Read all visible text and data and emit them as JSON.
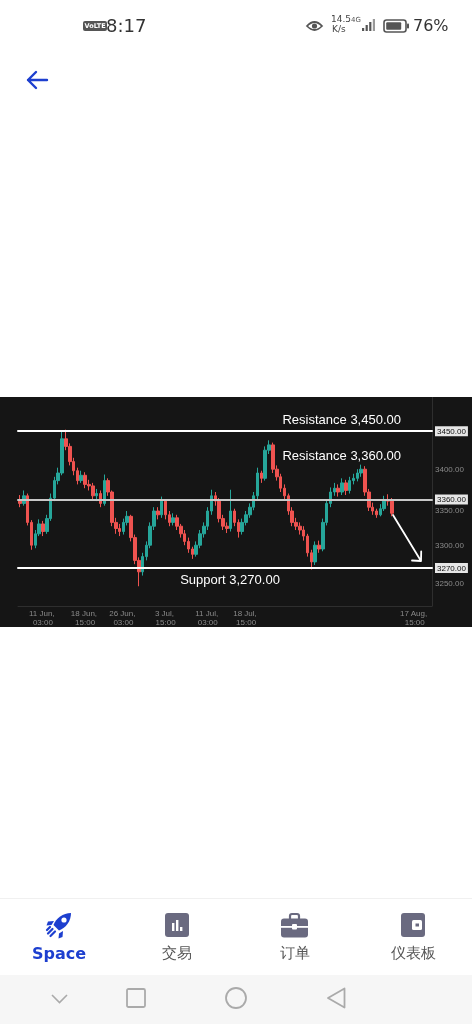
{
  "chart_data": {
    "type": "candlestick",
    "categories": [
      null,
      null,
      null,
      null,
      null,
      null,
      "11 Jun, 03:00",
      null,
      null,
      null,
      null,
      null,
      null,
      null,
      null,
      null,
      null,
      "18 Jun, 15:00",
      null,
      null,
      null,
      null,
      null,
      null,
      null,
      null,
      null,
      "26 Jun, 03:00",
      null,
      null,
      null,
      null,
      null,
      null,
      null,
      null,
      null,
      null,
      "3 Jul, 15:00",
      null,
      null,
      null,
      null,
      null,
      null,
      null,
      null,
      null,
      null,
      "11 Jul, 03:00",
      null,
      null,
      null,
      null,
      null,
      null,
      null,
      null,
      null,
      "18 Jul, 15:00",
      null,
      null,
      null,
      null,
      null,
      null,
      null,
      null,
      null,
      null,
      null,
      null,
      null,
      null,
      null,
      null,
      null,
      null,
      null,
      null,
      null,
      null,
      null,
      null,
      null,
      null,
      null,
      null,
      null,
      null,
      null,
      null,
      null,
      null,
      null,
      null,
      null,
      null,
      null,
      null,
      null,
      null,
      null,
      "17 Aug, 15:00",
      null,
      null,
      null,
      null
    ],
    "ohlc": [
      [
        3360,
        3366,
        3350,
        3355
      ],
      [
        3355,
        3372,
        3352,
        3365
      ],
      [
        3365,
        3368,
        3326,
        3330
      ],
      [
        3330,
        3333,
        3294,
        3300
      ],
      [
        3300,
        3320,
        3296,
        3315
      ],
      [
        3315,
        3334,
        3312,
        3328
      ],
      [
        3328,
        3332,
        3312,
        3318
      ],
      [
        3318,
        3340,
        3315,
        3335
      ],
      [
        3335,
        3368,
        3332,
        3362
      ],
      [
        3362,
        3390,
        3358,
        3385
      ],
      [
        3385,
        3402,
        3380,
        3395
      ],
      [
        3395,
        3451,
        3392,
        3440
      ],
      [
        3440,
        3452,
        3425,
        3430
      ],
      [
        3430,
        3434,
        3405,
        3410
      ],
      [
        3410,
        3415,
        3392,
        3398
      ],
      [
        3398,
        3402,
        3380,
        3385
      ],
      [
        3385,
        3398,
        3382,
        3392
      ],
      [
        3392,
        3396,
        3375,
        3380
      ],
      [
        3380,
        3386,
        3372,
        3378
      ],
      [
        3378,
        3382,
        3360,
        3365
      ],
      [
        3365,
        3374,
        3358,
        3368
      ],
      [
        3368,
        3372,
        3350,
        3355
      ],
      [
        3355,
        3393,
        3352,
        3385
      ],
      [
        3385,
        3388,
        3365,
        3370
      ],
      [
        3370,
        3372,
        3325,
        3330
      ],
      [
        3330,
        3336,
        3315,
        3322
      ],
      [
        3322,
        3328,
        3312,
        3318
      ],
      [
        3318,
        3335,
        3314,
        3330
      ],
      [
        3330,
        3345,
        3326,
        3338
      ],
      [
        3338,
        3340,
        3305,
        3310
      ],
      [
        3310,
        3314,
        3275,
        3280
      ],
      [
        3280,
        3284,
        3246,
        3265
      ],
      [
        3265,
        3290,
        3260,
        3285
      ],
      [
        3285,
        3305,
        3280,
        3300
      ],
      [
        3300,
        3330,
        3296,
        3325
      ],
      [
        3325,
        3350,
        3320,
        3345
      ],
      [
        3345,
        3350,
        3334,
        3340
      ],
      [
        3340,
        3364,
        3336,
        3358
      ],
      [
        3358,
        3360,
        3334,
        3340
      ],
      [
        3340,
        3345,
        3325,
        3330
      ],
      [
        3330,
        3342,
        3326,
        3336
      ],
      [
        3336,
        3340,
        3320,
        3325
      ],
      [
        3325,
        3328,
        3310,
        3315
      ],
      [
        3315,
        3320,
        3300,
        3305
      ],
      [
        3305,
        3310,
        3290,
        3295
      ],
      [
        3295,
        3298,
        3282,
        3288
      ],
      [
        3288,
        3305,
        3285,
        3300
      ],
      [
        3300,
        3320,
        3296,
        3315
      ],
      [
        3315,
        3330,
        3310,
        3325
      ],
      [
        3325,
        3350,
        3320,
        3345
      ],
      [
        3345,
        3373,
        3340,
        3365
      ],
      [
        3365,
        3370,
        3352,
        3358
      ],
      [
        3358,
        3362,
        3330,
        3335
      ],
      [
        3335,
        3340,
        3320,
        3325
      ],
      [
        3325,
        3330,
        3316,
        3322
      ],
      [
        3322,
        3373,
        3318,
        3345
      ],
      [
        3345,
        3348,
        3325,
        3330
      ],
      [
        3330,
        3334,
        3310,
        3318
      ],
      [
        3318,
        3335,
        3314,
        3330
      ],
      [
        3330,
        3345,
        3326,
        3340
      ],
      [
        3340,
        3355,
        3336,
        3350
      ],
      [
        3350,
        3370,
        3346,
        3365
      ],
      [
        3365,
        3402,
        3360,
        3395
      ],
      [
        3395,
        3398,
        3382,
        3388
      ],
      [
        3388,
        3430,
        3385,
        3425
      ],
      [
        3425,
        3438,
        3420,
        3432
      ],
      [
        3432,
        3435,
        3395,
        3400
      ],
      [
        3400,
        3405,
        3385,
        3390
      ],
      [
        3390,
        3394,
        3370,
        3375
      ],
      [
        3375,
        3380,
        3360,
        3365
      ],
      [
        3365,
        3368,
        3340,
        3345
      ],
      [
        3345,
        3350,
        3325,
        3330
      ],
      [
        3330,
        3336,
        3320,
        3325
      ],
      [
        3325,
        3330,
        3314,
        3320
      ],
      [
        3320,
        3325,
        3306,
        3312
      ],
      [
        3312,
        3315,
        3285,
        3290
      ],
      [
        3290,
        3294,
        3268,
        3278
      ],
      [
        3278,
        3305,
        3274,
        3300
      ],
      [
        3300,
        3306,
        3290,
        3295
      ],
      [
        3295,
        3335,
        3292,
        3330
      ],
      [
        3330,
        3360,
        3326,
        3355
      ],
      [
        3355,
        3376,
        3350,
        3370
      ],
      [
        3370,
        3382,
        3365,
        3375
      ],
      [
        3375,
        3380,
        3364,
        3370
      ],
      [
        3370,
        3388,
        3366,
        3382
      ],
      [
        3382,
        3386,
        3366,
        3372
      ],
      [
        3372,
        3390,
        3368,
        3385
      ],
      [
        3385,
        3394,
        3380,
        3388
      ],
      [
        3388,
        3400,
        3384,
        3395
      ],
      [
        3395,
        3406,
        3390,
        3400
      ],
      [
        3400,
        3404,
        3365,
        3370
      ],
      [
        3370,
        3374,
        3345,
        3350
      ],
      [
        3350,
        3356,
        3340,
        3345
      ],
      [
        3345,
        3348,
        3336,
        3340
      ],
      [
        3340,
        3354,
        3338,
        3348
      ],
      [
        3348,
        3365,
        3345,
        3360
      ],
      [
        3360,
        3367,
        3352,
        3358
      ],
      [
        3358,
        3362,
        3338,
        3342
      ],
      null,
      null,
      null,
      null,
      null,
      null,
      null,
      null,
      null,
      null
    ],
    "ylim": [
      3220,
      3495
    ],
    "yticks": [
      {
        "value": 3250,
        "label": "3250.00"
      },
      {
        "value": 3270,
        "label": "3270.00"
      },
      {
        "value": 3300,
        "label": "3300.00"
      },
      {
        "value": 3350,
        "label": "3350.00"
      },
      {
        "value": 3360,
        "label": "3360.00"
      },
      {
        "value": 3400,
        "label": "3400.00"
      },
      {
        "value": 3450,
        "label": "3450.00"
      }
    ],
    "ref_lines": [
      {
        "axis": "y",
        "value": 3450,
        "label": "Resistance 3,450.00",
        "color": "#ffffff"
      },
      {
        "axis": "y",
        "value": 3360,
        "label": "Resistance 3,360.00",
        "color": "#c8c8c8"
      },
      {
        "axis": "y",
        "value": 3270,
        "label": "Support 3,270.00",
        "color": "#ffffff"
      }
    ],
    "annotations": [
      "VoLTE",
      "8:17",
      "14.5",
      "K/s",
      "4G",
      "76%",
      "Space",
      "交易",
      "订单",
      "仪表板"
    ]
  }
}
